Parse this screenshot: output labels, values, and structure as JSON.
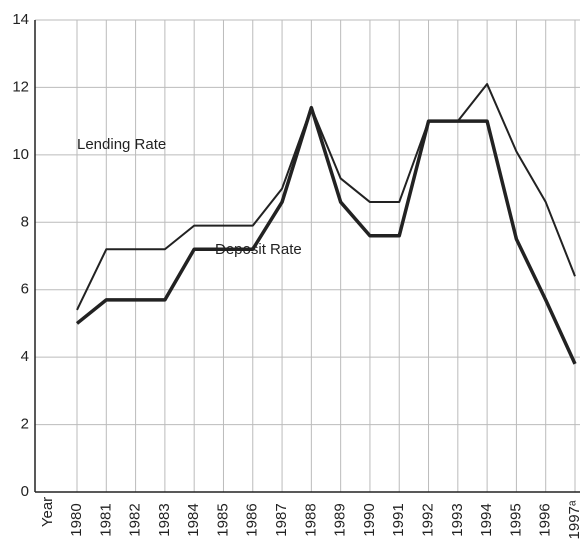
{
  "chart_data": {
    "type": "line",
    "x_label": "Year",
    "categories": [
      "1980",
      "1981",
      "1982",
      "1983",
      "1984",
      "1985",
      "1986",
      "1987",
      "1988",
      "1989",
      "1990",
      "1991",
      "1992",
      "1993",
      "1994",
      "1995",
      "1996",
      "1997ᵃ"
    ],
    "series": [
      {
        "name": "Lending Rate",
        "color": "#222222",
        "values": [
          5.4,
          7.2,
          7.2,
          7.2,
          7.9,
          7.9,
          7.9,
          9.0,
          11.4,
          9.3,
          8.6,
          8.6,
          11.0,
          11.0,
          12.1,
          10.1,
          8.6,
          6.4
        ]
      },
      {
        "name": "Deposit Rate",
        "color": "#222222",
        "values": [
          5.0,
          5.7,
          5.7,
          5.7,
          7.2,
          7.2,
          7.2,
          8.6,
          11.4,
          8.6,
          7.6,
          7.6,
          11.0,
          11.0,
          11.0,
          7.5,
          5.7,
          3.8
        ]
      }
    ],
    "ylim": [
      0,
      14
    ],
    "yticks": [
      0,
      2,
      4,
      6,
      8,
      10,
      12,
      14
    ],
    "grid": true
  }
}
